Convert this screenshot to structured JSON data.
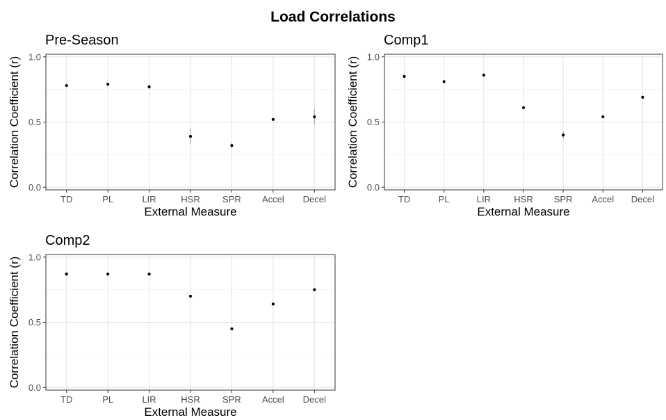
{
  "title": "Load Correlations",
  "chart_data": [
    {
      "type": "scatter",
      "title": "Pre-Season",
      "xlabel": "External Measure",
      "ylabel": "Correlation Coefficient (r)",
      "categories": [
        "TD",
        "PL",
        "LIR",
        "HSR",
        "SPR",
        "Accel",
        "Decel"
      ],
      "values": [
        0.78,
        0.79,
        0.77,
        0.39,
        0.32,
        0.52,
        0.54
      ],
      "lower": [
        0.77,
        0.78,
        0.75,
        0.33,
        0.3,
        0.51,
        0.48
      ],
      "upper": [
        0.79,
        0.8,
        0.79,
        0.45,
        0.34,
        0.53,
        0.6
      ],
      "ylim": [
        -0.02,
        1.02
      ],
      "yticks": [
        "0.0",
        "0.5",
        "1.0"
      ],
      "grid": true
    },
    {
      "type": "scatter",
      "title": "Comp1",
      "xlabel": "External Measure",
      "ylabel": "Correlation Coefficient (r)",
      "categories": [
        "TD",
        "PL",
        "LIR",
        "HSR",
        "SPR",
        "Accel",
        "Decel"
      ],
      "values": [
        0.85,
        0.81,
        0.86,
        0.61,
        0.4,
        0.54,
        0.69
      ],
      "lower": [
        0.84,
        0.8,
        0.85,
        0.6,
        0.37,
        0.53,
        0.68
      ],
      "upper": [
        0.86,
        0.82,
        0.87,
        0.62,
        0.43,
        0.55,
        0.7
      ],
      "ylim": [
        -0.02,
        1.02
      ],
      "yticks": [
        "0.0",
        "0.5",
        "1.0"
      ],
      "grid": true
    },
    {
      "type": "scatter",
      "title": "Comp2",
      "xlabel": "External Measure",
      "ylabel": "Correlation Coefficient (r)",
      "categories": [
        "TD",
        "PL",
        "LIR",
        "HSR",
        "SPR",
        "Accel",
        "Decel"
      ],
      "values": [
        0.87,
        0.87,
        0.87,
        0.7,
        0.45,
        0.64,
        0.75
      ],
      "lower": [
        0.865,
        0.865,
        0.865,
        0.69,
        0.44,
        0.635,
        0.745
      ],
      "upper": [
        0.875,
        0.875,
        0.875,
        0.71,
        0.46,
        0.645,
        0.755
      ],
      "ylim": [
        -0.02,
        1.02
      ],
      "yticks": [
        "0.0",
        "0.5",
        "1.0"
      ],
      "grid": true
    }
  ]
}
